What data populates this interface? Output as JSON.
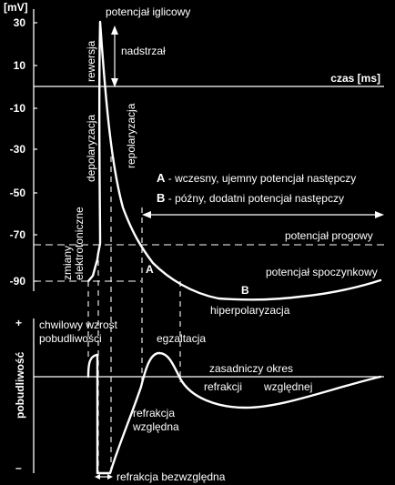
{
  "top_chart": {
    "y_unit": "[mV]",
    "y_ticks": [
      "30",
      "10",
      "-10",
      "-30",
      "-50",
      "-70",
      "-90"
    ],
    "x_axis_label": "czas [ms]",
    "labels": {
      "peak": "potencjał iglicowy",
      "overshoot": "nadstrzał",
      "reversal": "rewersja",
      "depolarization": "depolaryzacja",
      "repolarization": "repolaryzacja",
      "electrotonic_1": "zmiany",
      "electrotonic_2": "elektrotoniczne",
      "threshold": "potencjał progowy",
      "resting": "potencjał spoczynkowy",
      "hyperpolarization": "hiperpolaryzacja",
      "point_a": "A",
      "point_b": "B",
      "legend_a_key": "A",
      "legend_a_text": "- wczesny, ujemny potencjał następczy",
      "legend_b_key": "B",
      "legend_b_text": "- późny, dodatni potencjał następczy"
    }
  },
  "bottom_chart": {
    "y_label": "pobudliwość",
    "plus_sign": "+",
    "minus_sign": "–",
    "labels": {
      "temp_increase_1": "chwilowy wzrost",
      "temp_increase_2": "pobudliwości",
      "exaltation": "egzaltacja",
      "basic_period": "zasadniczy okres",
      "relative_refractory_1": "refrakcji",
      "relative_refractory_2": "względnej",
      "relative_refr_1": "refrakcja",
      "relative_refr_2": "względna",
      "absolute_refractory": "refrakcja bezwzględna"
    }
  }
}
